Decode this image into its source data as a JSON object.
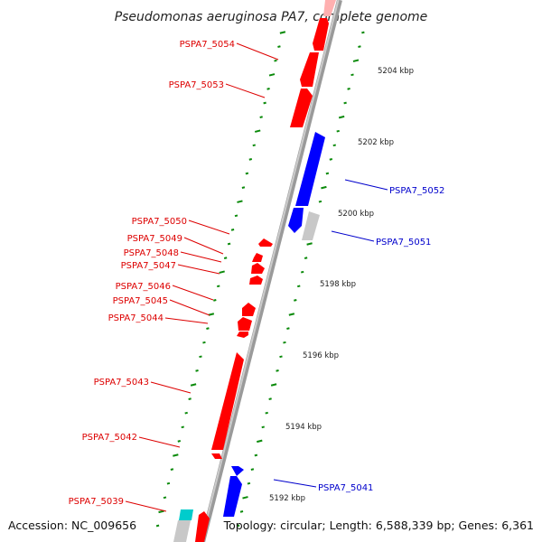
{
  "title": "Pseudomonas aeruginosa PA7, complete genome",
  "accession": "Accession: NC_009656",
  "topology": "Topology: circular; Length: 6,588,339 bp; Genes: 6,361",
  "colors": {
    "reverse_strand": "#ff0000",
    "forward_strand": "#0000ff",
    "backbone": "#888888",
    "gc_ticks": "#0a8a0a",
    "rna": "#00c8c8",
    "pseudo": "#c8c8c8"
  },
  "ticks": [
    {
      "kbp": 5204,
      "label": "5204 kbp"
    },
    {
      "kbp": 5202,
      "label": "5202 kbp"
    },
    {
      "kbp": 5200,
      "label": "5200 kbp"
    },
    {
      "kbp": 5198,
      "label": "5198 kbp"
    },
    {
      "kbp": 5196,
      "label": "5196 kbp"
    },
    {
      "kbp": 5194,
      "label": "5194 kbp"
    },
    {
      "kbp": 5192,
      "label": "5192 kbp"
    }
  ],
  "gene_labels_left": [
    {
      "name": "PSPA7_5054"
    },
    {
      "name": "PSPA7_5053"
    },
    {
      "name": "PSPA7_5050"
    },
    {
      "name": "PSPA7_5049"
    },
    {
      "name": "PSPA7_5048"
    },
    {
      "name": "PSPA7_5047"
    },
    {
      "name": "PSPA7_5046"
    },
    {
      "name": "PSPA7_5045"
    },
    {
      "name": "PSPA7_5044"
    },
    {
      "name": "PSPA7_5043"
    },
    {
      "name": "PSPA7_5042"
    },
    {
      "name": "PSPA7_5039"
    }
  ],
  "gene_labels_right": [
    {
      "name": "PSPA7_5052"
    },
    {
      "name": "PSPA7_5051"
    },
    {
      "name": "PSPA7_5041"
    }
  ]
}
